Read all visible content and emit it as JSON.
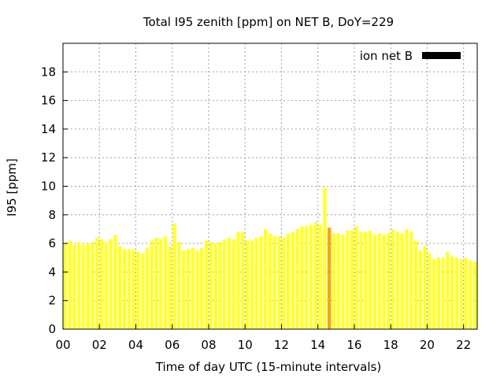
{
  "chart_data": {
    "type": "bar",
    "title": "Total I95 zenith [ppm] on NET B, DoY=229",
    "xlabel": "Time of day UTC (15-minute intervals)",
    "ylabel": "I95 [ppm]",
    "xlim": [
      0,
      22.75
    ],
    "ylim": [
      0,
      20
    ],
    "xticks": [
      "00",
      "02",
      "04",
      "06",
      "08",
      "10",
      "12",
      "14",
      "16",
      "18",
      "20",
      "22"
    ],
    "xtick_values": [
      0,
      2,
      4,
      6,
      8,
      10,
      12,
      14,
      16,
      18,
      20,
      22
    ],
    "yticks": [
      "0",
      "2",
      "4",
      "6",
      "8",
      "10",
      "12",
      "14",
      "16",
      "18"
    ],
    "ytick_values": [
      0,
      2,
      4,
      6,
      8,
      10,
      12,
      14,
      16,
      18
    ],
    "grid": true,
    "legend": {
      "label": "ion net B",
      "position": "top-right",
      "color": "#000000"
    },
    "bar_color": "#ffff33",
    "highlight_color": "#ffa500",
    "highlight_index": 58,
    "interval_hours": 0.25,
    "values": [
      6.0,
      6.2,
      5.9,
      6.1,
      5.9,
      6.0,
      6.1,
      6.4,
      6.3,
      6.1,
      6.3,
      6.6,
      5.8,
      5.6,
      5.6,
      5.6,
      5.4,
      5.3,
      5.7,
      6.2,
      6.4,
      6.3,
      6.5,
      5.8,
      7.4,
      6.1,
      5.5,
      5.6,
      5.7,
      5.5,
      5.7,
      6.2,
      6.1,
      6.0,
      6.1,
      6.3,
      6.4,
      6.3,
      6.8,
      6.8,
      6.2,
      6.2,
      6.4,
      6.5,
      7.0,
      6.7,
      6.5,
      6.5,
      6.4,
      6.7,
      6.8,
      7.0,
      7.2,
      7.2,
      7.3,
      7.5,
      7.3,
      9.9,
      7.1,
      6.7,
      6.7,
      6.6,
      6.9,
      6.9,
      7.2,
      6.8,
      6.8,
      6.9,
      6.6,
      6.7,
      6.6,
      6.7,
      7.0,
      6.8,
      6.7,
      7.0,
      6.8,
      6.2,
      5.5,
      5.8,
      5.3,
      4.9,
      5.0,
      5.0,
      5.4,
      5.1,
      5.0,
      4.9,
      5.0,
      4.8,
      4.7
    ]
  }
}
